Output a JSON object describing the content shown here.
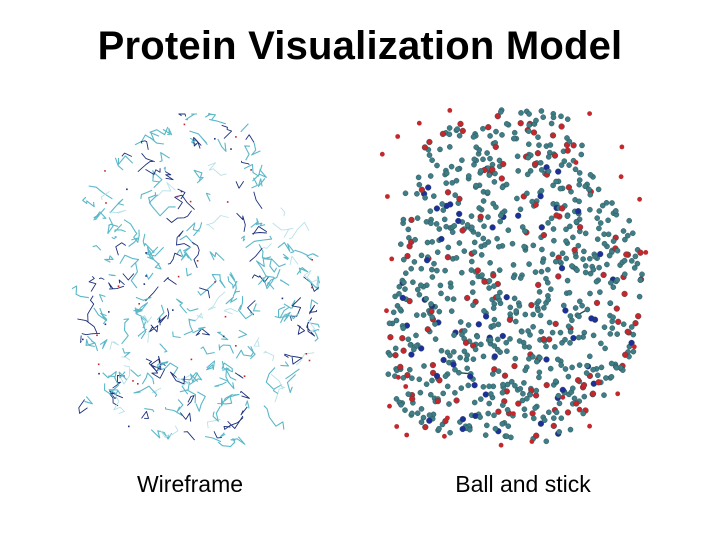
{
  "slide": {
    "title": "Protein Visualization Model"
  },
  "panels": {
    "wireframe": {
      "caption": "Wireframe",
      "colors": {
        "primary": "#5bb8c9",
        "secondary": "#1c2f7a",
        "accent": "#b8e2e8",
        "oxygen": "#c0262b"
      }
    },
    "ball_and_stick": {
      "caption": "Ball and stick",
      "colors": {
        "carbon": "#3f7e86",
        "carbon_dark": "#244a50",
        "oxygen": "#c4272c",
        "nitrogen": "#1f2f9a"
      }
    }
  }
}
